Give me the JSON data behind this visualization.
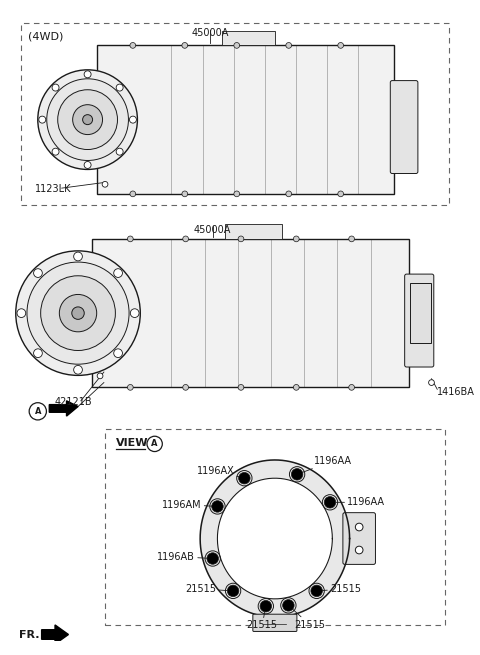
{
  "bg_color": "#ffffff",
  "line_color": "#1a1a1a",
  "dashed_box_color": "#666666",
  "title_4wd": "(4WD)",
  "label_45000A_top": "45000A",
  "label_1123LK": "1123LK",
  "label_45000A_mid": "45000A",
  "label_42121B": "42121B",
  "label_1416BA": "1416BA",
  "label_view_a": "VIEW",
  "label_1196AX": "1196AX",
  "label_1196AA_top": "1196AA",
  "label_1196AA_mid": "1196AA",
  "label_1196AM": "1196AM",
  "label_1196AB": "1196AB",
  "label_21515_left": "21515",
  "label_21515_right": "21515",
  "label_21515_bottom1": "21515",
  "label_21515_bottom2": "21515",
  "label_FR": "FR.",
  "font_size_labels": 7,
  "font_size_title": 8
}
